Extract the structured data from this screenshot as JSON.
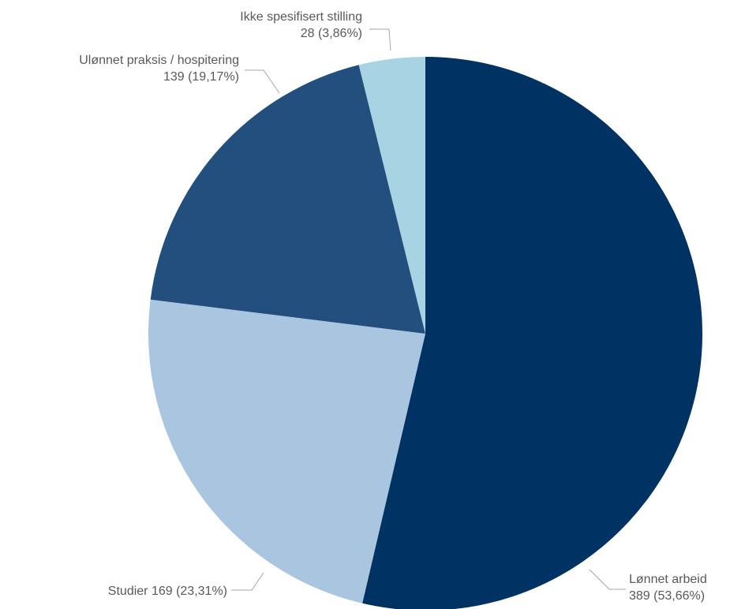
{
  "chart_data": {
    "type": "pie",
    "title": "",
    "start_angle_deg": 0,
    "direction": "clockwise",
    "slices": [
      {
        "name": "Lønnet arbeid",
        "value": 389,
        "percent": "53,66%",
        "label_line1": "Lønnet arbeid",
        "label_line2": "389 (53,66%)",
        "color": "#003264"
      },
      {
        "name": "Studier",
        "value": 169,
        "percent": "23,31%",
        "label_line1": "Studier 169 (23,31%)",
        "label_line2": "",
        "color": "#a9c5e0"
      },
      {
        "name": "Ulønnet praksis / hospitering",
        "value": 139,
        "percent": "19,17%",
        "label_line1": "Ulønnet praksis / hospitering",
        "label_line2": "139 (19,17%)",
        "color": "#224f7e"
      },
      {
        "name": "Ikke spesifisert stilling",
        "value": 28,
        "percent": "3,86%",
        "label_line1": "Ikke spesifisert stilling",
        "label_line2": "28 (3,86%)",
        "color": "#a7d3e3"
      }
    ]
  }
}
